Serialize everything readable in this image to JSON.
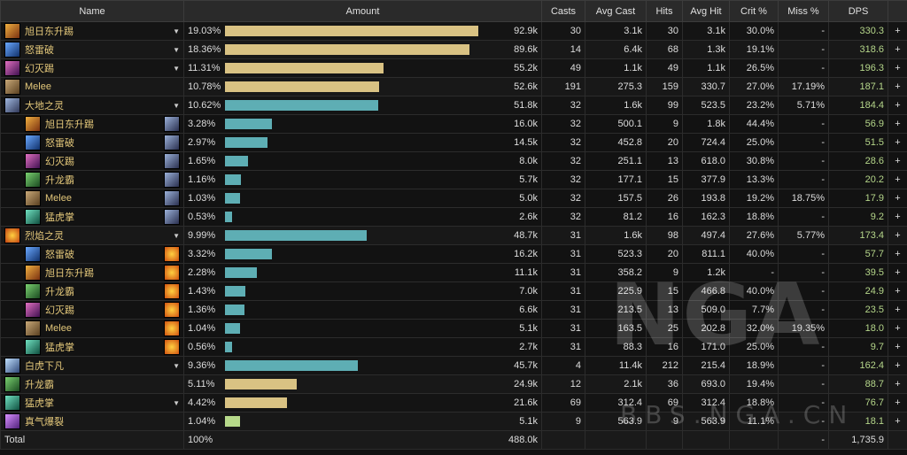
{
  "header": {
    "name": "Name",
    "amount": "Amount",
    "casts": "Casts",
    "avg_cast": "Avg Cast",
    "hits": "Hits",
    "avg_hit": "Avg Hit",
    "crit": "Crit %",
    "miss": "Miss %",
    "dps": "DPS"
  },
  "rows": [
    {
      "name": "旭日东升踢",
      "icon": "rising-sun-kick-icon",
      "pct": "19.03%",
      "amount": "92.9k",
      "casts": "30",
      "avg_cast": "3.1k",
      "hits": "30",
      "avg_hit": "3.1k",
      "crit": "30.0%",
      "miss": "-",
      "dps": "330.3",
      "expand": "▼",
      "bar_fraction": 0.9211,
      "bar_color": "gold",
      "sub": false
    },
    {
      "name": "怒雷破",
      "icon": "fists-of-fury-icon",
      "pct": "18.36%",
      "amount": "89.6k",
      "casts": "14",
      "avg_cast": "6.4k",
      "hits": "68",
      "avg_hit": "1.3k",
      "crit": "19.1%",
      "miss": "-",
      "dps": "318.6",
      "expand": "▼",
      "bar_fraction": 0.8892,
      "bar_color": "gold",
      "sub": false
    },
    {
      "name": "幻灭踢",
      "icon": "blackout-kick-icon",
      "pct": "11.31%",
      "amount": "55.2k",
      "casts": "49",
      "avg_cast": "1.1k",
      "hits": "49",
      "avg_hit": "1.1k",
      "crit": "26.5%",
      "miss": "-",
      "dps": "196.3",
      "expand": "▼",
      "bar_fraction": 0.5779,
      "bar_color": "gold",
      "sub": false
    },
    {
      "name": "Melee",
      "icon": "melee-icon",
      "pct": "10.78%",
      "amount": "52.6k",
      "casts": "191",
      "avg_cast": "275.3",
      "hits": "159",
      "avg_hit": "330.7",
      "crit": "27.0%",
      "miss": "17.19%",
      "dps": "187.1",
      "expand": "",
      "bar_fraction": 0.5599,
      "bar_color": "gold",
      "sub": false
    },
    {
      "name": "大地之灵",
      "icon": "earth-spirit-icon",
      "pct": "10.62%",
      "amount": "51.8k",
      "casts": "32",
      "avg_cast": "1.6k",
      "hits": "99",
      "avg_hit": "523.5",
      "crit": "23.2%",
      "miss": "5.71%",
      "dps": "184.4",
      "expand": "▼",
      "bar_fraction": 0.5584,
      "bar_color": "teal",
      "sub": false
    },
    {
      "name": "旭日东升踢",
      "icon": "rising-sun-kick-icon",
      "pct": "3.28%",
      "amount": "16.0k",
      "casts": "32",
      "avg_cast": "500.1",
      "hits": "9",
      "avg_hit": "1.8k",
      "crit": "44.4%",
      "miss": "-",
      "dps": "56.9",
      "expand": "",
      "src": "earth-spirit-source-icon",
      "bar_fraction": 0.1721,
      "bar_color": "teal",
      "sub": true
    },
    {
      "name": "怒雷破",
      "icon": "fists-of-fury-icon",
      "pct": "2.97%",
      "amount": "14.5k",
      "casts": "32",
      "avg_cast": "452.8",
      "hits": "20",
      "avg_hit": "724.4",
      "crit": "25.0%",
      "miss": "-",
      "dps": "51.5",
      "expand": "",
      "src": "earth-spirit-source-icon",
      "bar_fraction": 0.1558,
      "bar_color": "teal",
      "sub": true
    },
    {
      "name": "幻灭踢",
      "icon": "blackout-kick-icon",
      "pct": "1.65%",
      "amount": "8.0k",
      "casts": "32",
      "avg_cast": "251.1",
      "hits": "13",
      "avg_hit": "618.0",
      "crit": "30.8%",
      "miss": "-",
      "dps": "28.6",
      "expand": "",
      "src": "earth-spirit-source-icon",
      "bar_fraction": 0.0844,
      "bar_color": "teal",
      "sub": true
    },
    {
      "name": "升龙霸",
      "icon": "rising-dragon-icon",
      "pct": "1.16%",
      "amount": "5.7k",
      "casts": "32",
      "avg_cast": "177.1",
      "hits": "15",
      "avg_hit": "377.9",
      "crit": "13.3%",
      "miss": "-",
      "dps": "20.2",
      "expand": "",
      "src": "earth-spirit-source-icon",
      "bar_fraction": 0.0585,
      "bar_color": "teal",
      "sub": true
    },
    {
      "name": "Melee",
      "icon": "melee-icon",
      "pct": "1.03%",
      "amount": "5.0k",
      "casts": "32",
      "avg_cast": "157.5",
      "hits": "26",
      "avg_hit": "193.8",
      "crit": "19.2%",
      "miss": "18.75%",
      "dps": "17.9",
      "expand": "",
      "src": "earth-spirit-source-icon",
      "bar_fraction": 0.0552,
      "bar_color": "teal",
      "sub": true
    },
    {
      "name": "猛虎掌",
      "icon": "tiger-palm-icon",
      "pct": "0.53%",
      "amount": "2.6k",
      "casts": "32",
      "avg_cast": "81.2",
      "hits": "16",
      "avg_hit": "162.3",
      "crit": "18.8%",
      "miss": "-",
      "dps": "9.2",
      "expand": "",
      "src": "earth-spirit-source-icon",
      "bar_fraction": 0.026,
      "bar_color": "teal",
      "sub": true
    },
    {
      "name": "烈焰之灵",
      "icon": "fire-spirit-icon",
      "pct": "9.99%",
      "amount": "48.7k",
      "casts": "31",
      "avg_cast": "1.6k",
      "hits": "98",
      "avg_hit": "497.4",
      "crit": "27.6%",
      "miss": "5.77%",
      "dps": "173.4",
      "expand": "▼",
      "bar_fraction": 0.5162,
      "bar_color": "teal",
      "sub": false
    },
    {
      "name": "怒雷破",
      "icon": "fists-of-fury-icon",
      "pct": "3.32%",
      "amount": "16.2k",
      "casts": "31",
      "avg_cast": "523.3",
      "hits": "20",
      "avg_hit": "811.1",
      "crit": "40.0%",
      "miss": "-",
      "dps": "57.7",
      "expand": "",
      "src": "fire-spirit-source-icon",
      "bar_fraction": 0.1721,
      "bar_color": "teal",
      "sub": true
    },
    {
      "name": "旭日东升踢",
      "icon": "rising-sun-kick-icon",
      "pct": "2.28%",
      "amount": "11.1k",
      "casts": "31",
      "avg_cast": "358.2",
      "hits": "9",
      "avg_hit": "1.2k",
      "crit": "-",
      "miss": "-",
      "dps": "39.5",
      "expand": "",
      "src": "fire-spirit-source-icon",
      "bar_fraction": 0.1169,
      "bar_color": "teal",
      "sub": true
    },
    {
      "name": "升龙霸",
      "icon": "rising-dragon-icon",
      "pct": "1.43%",
      "amount": "7.0k",
      "casts": "31",
      "avg_cast": "225.9",
      "hits": "15",
      "avg_hit": "466.8",
      "crit": "40.0%",
      "miss": "-",
      "dps": "24.9",
      "expand": "",
      "src": "fire-spirit-source-icon",
      "bar_fraction": 0.0747,
      "bar_color": "teal",
      "sub": true
    },
    {
      "name": "幻灭踢",
      "icon": "blackout-kick-icon",
      "pct": "1.36%",
      "amount": "6.6k",
      "casts": "31",
      "avg_cast": "213.5",
      "hits": "13",
      "avg_hit": "509.0",
      "crit": "7.7%",
      "miss": "-",
      "dps": "23.5",
      "expand": "",
      "src": "fire-spirit-source-icon",
      "bar_fraction": 0.0714,
      "bar_color": "teal",
      "sub": true
    },
    {
      "name": "Melee",
      "icon": "melee-icon",
      "pct": "1.04%",
      "amount": "5.1k",
      "casts": "31",
      "avg_cast": "163.5",
      "hits": "25",
      "avg_hit": "202.8",
      "crit": "32.0%",
      "miss": "19.35%",
      "dps": "18.0",
      "expand": "",
      "src": "fire-spirit-source-icon",
      "bar_fraction": 0.0552,
      "bar_color": "teal",
      "sub": true
    },
    {
      "name": "猛虎掌",
      "icon": "tiger-palm-icon",
      "pct": "0.56%",
      "amount": "2.7k",
      "casts": "31",
      "avg_cast": "88.3",
      "hits": "16",
      "avg_hit": "171.0",
      "crit": "25.0%",
      "miss": "-",
      "dps": "9.7",
      "expand": "",
      "src": "fire-spirit-source-icon",
      "bar_fraction": 0.026,
      "bar_color": "teal",
      "sub": true
    },
    {
      "name": "白虎下凡",
      "icon": "white-tiger-icon",
      "pct": "9.36%",
      "amount": "45.7k",
      "casts": "4",
      "avg_cast": "11.4k",
      "hits": "212",
      "avg_hit": "215.4",
      "crit": "18.9%",
      "miss": "-",
      "dps": "162.4",
      "expand": "▼",
      "bar_fraction": 0.4838,
      "bar_color": "teal",
      "sub": false
    },
    {
      "name": "升龙霸",
      "icon": "rising-dragon-icon",
      "pct": "5.11%",
      "amount": "24.9k",
      "casts": "12",
      "avg_cast": "2.1k",
      "hits": "36",
      "avg_hit": "693.0",
      "crit": "19.4%",
      "miss": "-",
      "dps": "88.7",
      "expand": "",
      "bar_fraction": 0.2597,
      "bar_color": "gold",
      "sub": false
    },
    {
      "name": "猛虎掌",
      "icon": "tiger-palm-icon",
      "pct": "4.42%",
      "amount": "21.6k",
      "casts": "69",
      "avg_cast": "312.4",
      "hits": "69",
      "avg_hit": "312.4",
      "crit": "18.8%",
      "miss": "-",
      "dps": "76.7",
      "expand": "▼",
      "bar_fraction": 0.2273,
      "bar_color": "gold",
      "sub": false
    },
    {
      "name": "真气爆裂",
      "icon": "chi-explosion-icon",
      "pct": "1.04%",
      "amount": "5.1k",
      "casts": "9",
      "avg_cast": "563.9",
      "hits": "9",
      "avg_hit": "563.9",
      "crit": "11.1%",
      "miss": "-",
      "dps": "18.1",
      "expand": "",
      "bar_fraction": 0.0552,
      "bar_color": "lime",
      "sub": false
    }
  ],
  "total": {
    "label": "Total",
    "pct": "100%",
    "amount": "488.0k",
    "casts": "",
    "avg_cast": "",
    "hits": "",
    "avg_hit": "",
    "crit": "",
    "miss": "-",
    "dps": "1,735.9"
  },
  "plus_label": "+",
  "watermark": {
    "logo": "NGA",
    "site": "BBS.NGA.CN"
  }
}
